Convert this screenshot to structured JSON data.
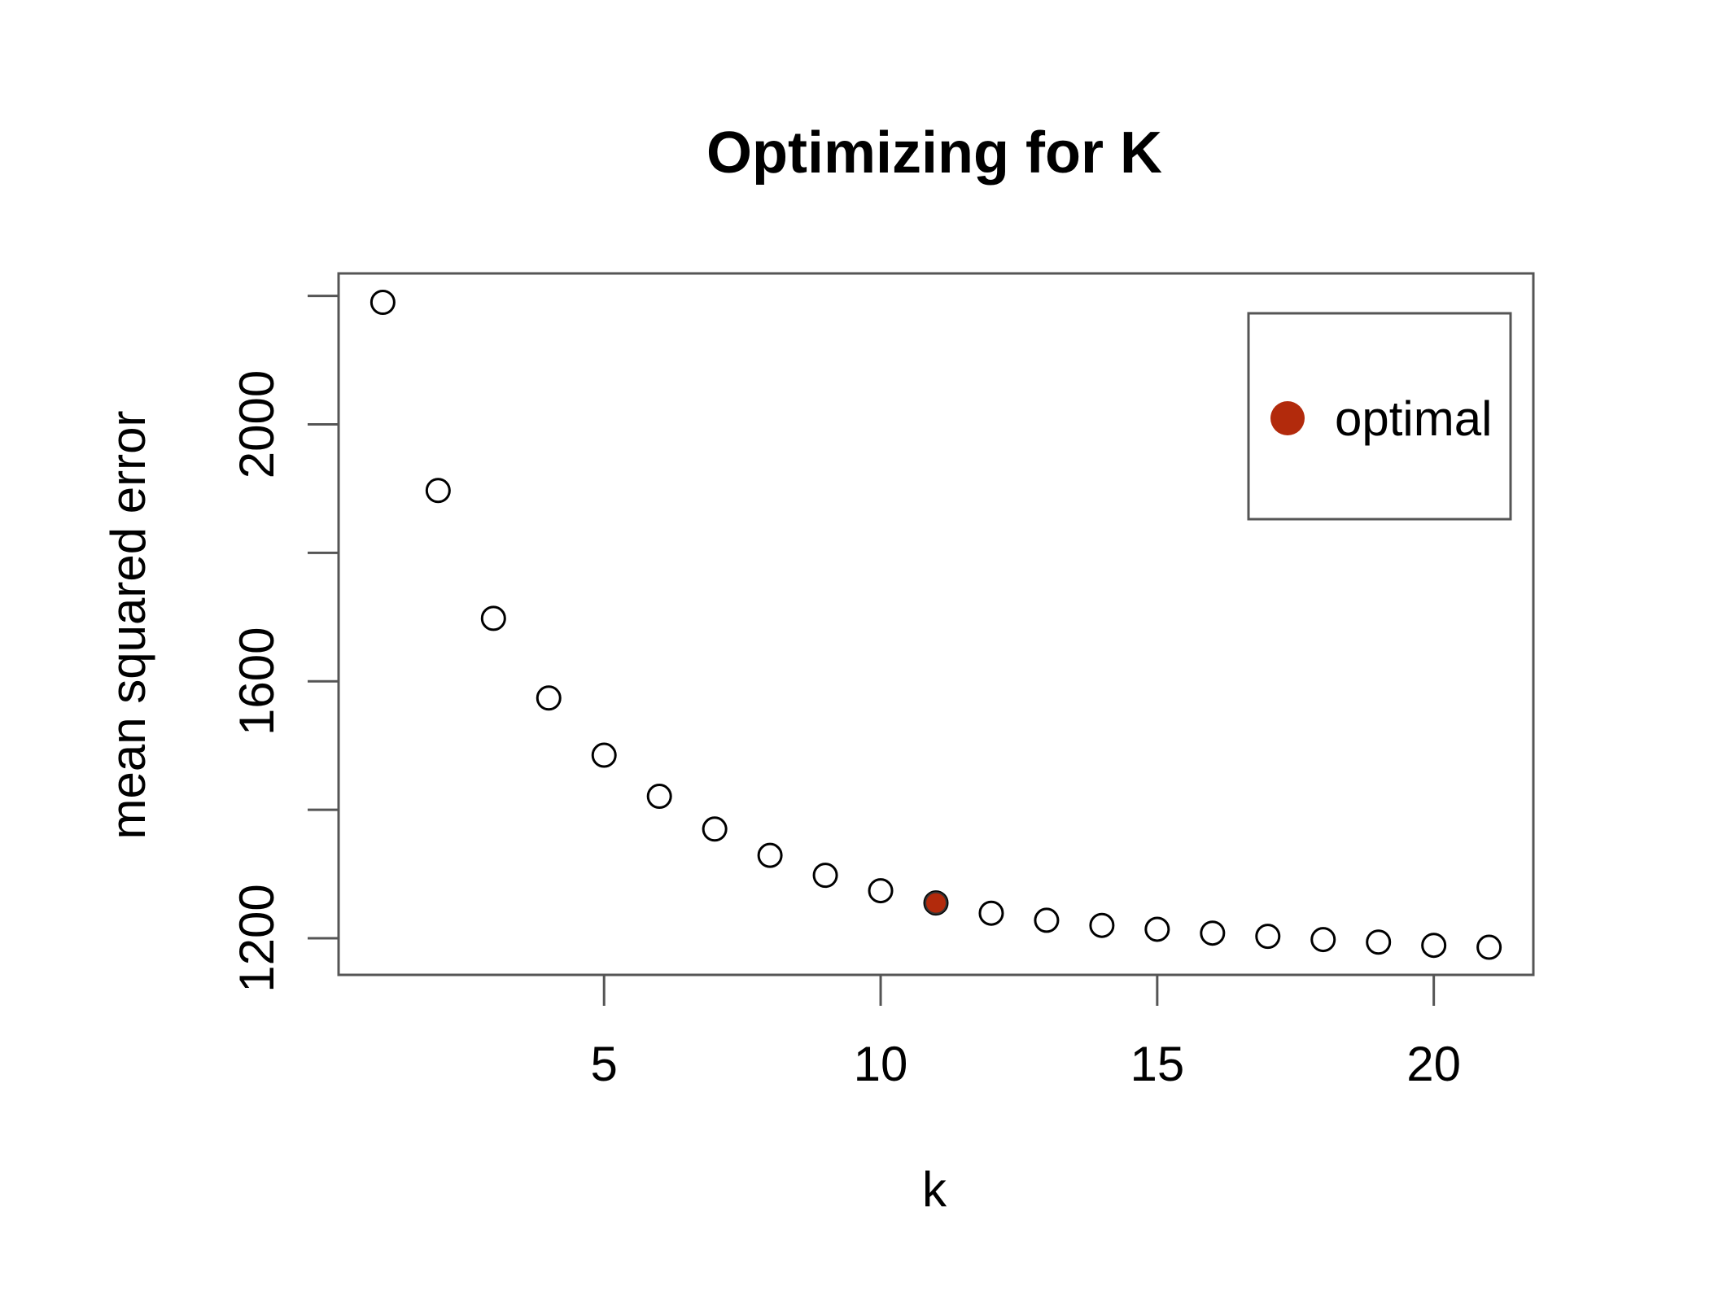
{
  "chart_data": {
    "type": "scatter",
    "title": "Optimizing for K",
    "xlabel": "k",
    "ylabel": "mean squared error",
    "xlim": [
      0.2,
      21.8
    ],
    "ylim": [
      1143,
      2235
    ],
    "x_ticks": [
      5,
      10,
      15,
      20
    ],
    "y_ticks": [
      1200,
      1400,
      1600,
      1800,
      2000,
      2200
    ],
    "y_tick_labels": [
      "1200",
      "",
      "1600",
      "",
      "2000",
      ""
    ],
    "grid": false,
    "legend_position": "top-right",
    "series": [
      {
        "x": [
          1,
          2,
          3,
          4,
          5,
          6,
          7,
          8,
          9,
          10,
          11,
          12,
          13,
          14,
          15,
          16,
          17,
          18,
          19,
          20,
          21
        ],
        "y": [
          2190,
          1897,
          1698,
          1574,
          1485,
          1421,
          1370,
          1329,
          1298,
          1274,
          1255,
          1239,
          1228,
          1220,
          1214,
          1208,
          1203,
          1198,
          1194,
          1189,
          1186
        ],
        "marker": "open-circle",
        "color": "#000000"
      },
      {
        "name": "optimal",
        "x": [
          11
        ],
        "y": [
          1255
        ],
        "marker": "filled-circle",
        "color": "#b22a0c"
      }
    ]
  }
}
